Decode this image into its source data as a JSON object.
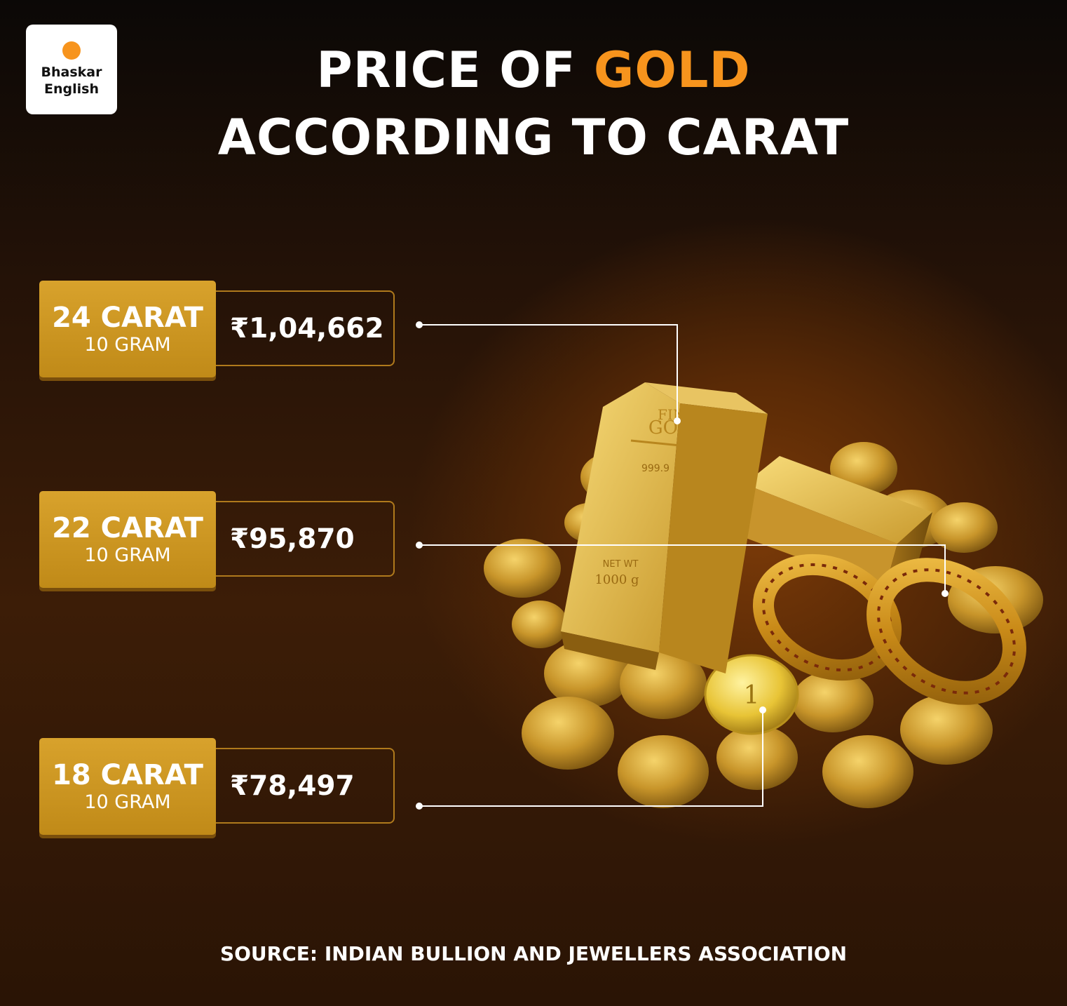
{
  "logo": {
    "line1": "Bhaskar",
    "line2": "English",
    "dot_color": "#f7941d"
  },
  "title": {
    "line1_prefix": "PRICE OF ",
    "line1_accent": "GOLD",
    "line2": "ACCORDING TO CARAT",
    "accent_color": "#f7941d"
  },
  "rows": [
    {
      "carat": "24 CARAT",
      "unit": "10 GRAM",
      "price": "₹1,04,662"
    },
    {
      "carat": "22 CARAT",
      "unit": "10 GRAM",
      "price": "₹95,870"
    },
    {
      "carat": "18 CARAT",
      "unit": "10 GRAM",
      "price": "₹78,497"
    }
  ],
  "source": "SOURCE: INDIAN BULLION AND JEWELLERS ASSOCIATION",
  "illustration": {
    "description_icon": "gold-bars-coins-bangles-icon",
    "bar_inscription": [
      "FINE",
      "GOLD",
      "999.9",
      "NET WT",
      "1000 g"
    ]
  }
}
